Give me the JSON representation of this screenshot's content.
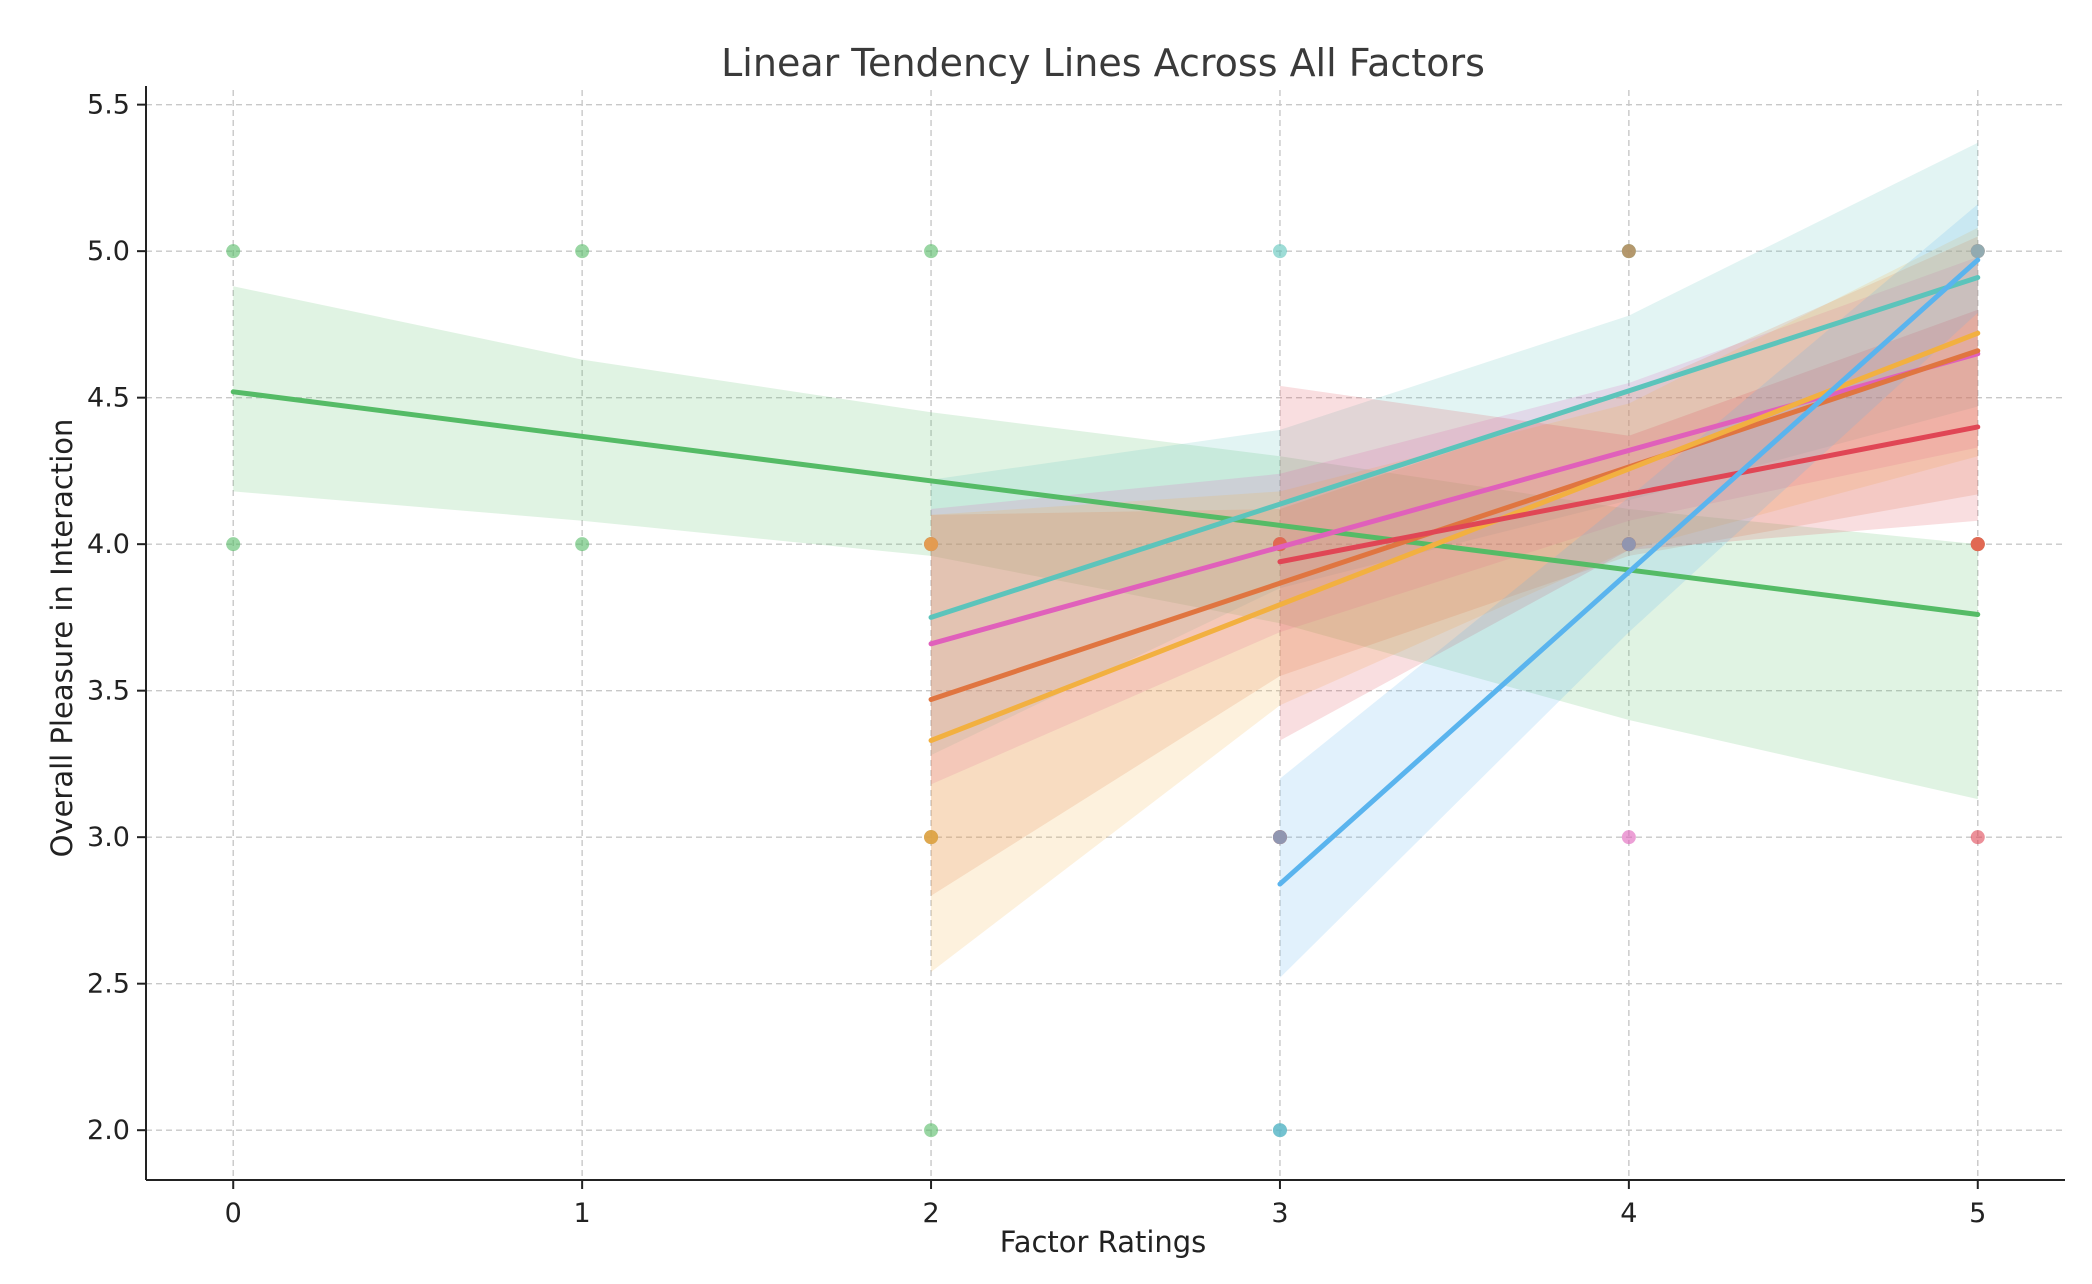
{
  "chart_data": {
    "type": "scatter",
    "title": "Linear Tendency Lines Across All Factors",
    "xlabel": "Factor Ratings",
    "ylabel": "Overall Pleasure in Interaction",
    "xlim": [
      -0.25,
      5.25
    ],
    "ylim": [
      1.83,
      5.55
    ],
    "x_ticks": [
      0,
      1,
      2,
      3,
      4,
      5
    ],
    "y_ticks": [
      2.0,
      2.5,
      3.0,
      3.5,
      4.0,
      4.5,
      5.0,
      5.5
    ],
    "grid": true,
    "legend": "none",
    "series": [
      {
        "color": "#55bb66",
        "points": [
          [
            0,
            5
          ],
          [
            0,
            4
          ],
          [
            1,
            5
          ],
          [
            1,
            4
          ],
          [
            2,
            5
          ],
          [
            2,
            4
          ],
          [
            2,
            3
          ],
          [
            2,
            2
          ],
          [
            3,
            4
          ],
          [
            3,
            2
          ],
          [
            4,
            5
          ],
          [
            4,
            4
          ],
          [
            5,
            4
          ]
        ],
        "trend": {
          "x0": 0,
          "y0": 4.52,
          "x1": 5,
          "y1": 3.76
        },
        "band": [
          [
            0,
            4.18,
            4.88
          ],
          [
            1,
            4.08,
            4.63
          ],
          [
            2,
            3.96,
            4.45
          ],
          [
            3,
            3.73,
            4.3
          ],
          [
            4,
            3.4,
            4.12
          ],
          [
            5,
            3.13,
            4.0
          ]
        ]
      },
      {
        "color": "#5cc4bb",
        "points": [
          [
            2,
            4
          ],
          [
            3,
            5
          ],
          [
            3,
            4
          ],
          [
            3,
            3
          ],
          [
            4,
            5
          ],
          [
            4,
            4
          ],
          [
            5,
            5
          ],
          [
            5,
            4
          ]
        ],
        "trend": {
          "x0": 2,
          "y0": 3.75,
          "x1": 5,
          "y1": 4.91
        },
        "band": [
          [
            2,
            3.28,
            4.22
          ],
          [
            3,
            3.85,
            4.39
          ],
          [
            4,
            4.15,
            4.78
          ],
          [
            5,
            4.47,
            5.37
          ]
        ]
      },
      {
        "color": "#e060bb",
        "points": [
          [
            2,
            4
          ],
          [
            3,
            4
          ],
          [
            3,
            3
          ],
          [
            4,
            4
          ],
          [
            4,
            3
          ],
          [
            5,
            5
          ],
          [
            5,
            4
          ]
        ],
        "trend": {
          "x0": 2,
          "y0": 3.66,
          "x1": 5,
          "y1": 4.65
        },
        "band": [
          [
            2,
            3.18,
            4.12
          ],
          [
            3,
            3.7,
            4.24
          ],
          [
            4,
            4.08,
            4.55
          ],
          [
            5,
            4.33,
            4.98
          ]
        ]
      },
      {
        "color": "#e07540",
        "points": [
          [
            2,
            4
          ],
          [
            2,
            3
          ],
          [
            3,
            4
          ],
          [
            3,
            3
          ],
          [
            4,
            4
          ],
          [
            4,
            5
          ],
          [
            5,
            5
          ],
          [
            5,
            4
          ]
        ],
        "trend": {
          "x0": 2,
          "y0": 3.47,
          "x1": 5,
          "y1": 4.66
        },
        "band": [
          [
            2,
            2.8,
            4.1
          ],
          [
            3,
            3.55,
            4.12
          ],
          [
            4,
            3.96,
            4.52
          ],
          [
            5,
            4.17,
            5.05
          ]
        ]
      },
      {
        "color": "#f2b040",
        "points": [
          [
            2,
            4
          ],
          [
            2,
            3
          ],
          [
            3,
            4
          ],
          [
            3,
            3
          ],
          [
            4,
            4
          ],
          [
            5,
            5
          ],
          [
            5,
            4
          ]
        ],
        "trend": {
          "x0": 2,
          "y0": 3.33,
          "x1": 5,
          "y1": 4.72
        },
        "band": [
          [
            2,
            2.54,
            4.1
          ],
          [
            3,
            3.45,
            4.18
          ],
          [
            4,
            3.98,
            4.48
          ],
          [
            5,
            4.3,
            5.08
          ]
        ]
      },
      {
        "color": "#e04655",
        "points": [
          [
            3,
            4
          ],
          [
            3,
            3
          ],
          [
            4,
            4
          ],
          [
            5,
            4
          ],
          [
            5,
            3
          ]
        ],
        "trend": {
          "x0": 3,
          "y0": 3.94,
          "x1": 5,
          "y1": 4.4
        },
        "band": [
          [
            3,
            3.33,
            4.54
          ],
          [
            4,
            3.98,
            4.37
          ],
          [
            5,
            4.08,
            4.8
          ]
        ]
      },
      {
        "color": "#5ab4ee",
        "points": [
          [
            3,
            3
          ],
          [
            3,
            2
          ],
          [
            4,
            4
          ],
          [
            5,
            5
          ]
        ],
        "trend": {
          "x0": 3,
          "y0": 2.84,
          "x1": 5,
          "y1": 4.97
        },
        "band": [
          [
            3,
            2.52,
            3.2
          ],
          [
            4,
            3.7,
            4.16
          ],
          [
            5,
            4.79,
            5.16
          ]
        ]
      }
    ]
  }
}
